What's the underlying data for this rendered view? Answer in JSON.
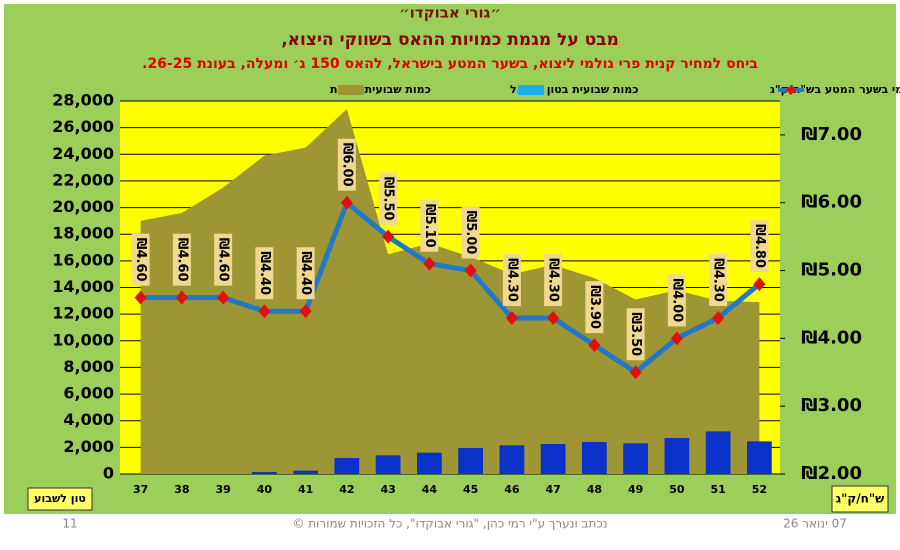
{
  "chart_data": {
    "type": "combo",
    "title": "״גורי אבוקדו״",
    "subtitle": "מבט על מגמת כמויות ההאס בשווקי היצוא,",
    "subtitle2": "ביחס למחיר קנית פרי גולמי ליצוא, בשער המטע בישראל, להאס 150 ג׳ ומעלה, בעונת 26-25.",
    "y_unit_label": "טון לשבוע",
    "y2_unit_label": "ש\"ח/ק\"ג",
    "footer_left": "11",
    "footer_center": "נכתב ונערך ע\"י רמי כהן, \"גורי אבוקדו\", כל הזכויות שמורות ©",
    "footer_right": "07 ינואר 26",
    "categories": [
      "37",
      "38",
      "39",
      "40",
      "41",
      "42",
      "43",
      "44",
      "45",
      "46",
      "47",
      "48",
      "49",
      "50",
      "51",
      "52"
    ],
    "series": [
      {
        "name": "כמות שבועית כוללת",
        "type": "area",
        "color": "#9e9634",
        "values": [
          19000,
          19600,
          21500,
          23900,
          24500,
          27400,
          16500,
          17300,
          16300,
          15000,
          15700,
          14700,
          13100,
          13800,
          13000,
          12900
        ]
      },
      {
        "name": "כמות שבועית בטון ישראל",
        "type": "bar",
        "color": "#0a32c8",
        "values": [
          0,
          0,
          0,
          150,
          250,
          1200,
          1400,
          1600,
          1950,
          2150,
          2250,
          2400,
          2300,
          2700,
          3200,
          2450
        ]
      },
      {
        "name": "האס גולמי בשער המטע בש\"ח/ק\"ג",
        "type": "line",
        "axis": "y2",
        "color": "#1f78c8",
        "marker_color": "#e01010",
        "values": [
          4.6,
          4.6,
          4.6,
          4.4,
          4.4,
          6.0,
          5.5,
          5.1,
          5.0,
          4.3,
          4.3,
          3.9,
          3.5,
          4.0,
          4.3,
          4.8
        ],
        "value_labels": [
          "₪4.60",
          "₪4.60",
          "₪4.60",
          "₪4.40",
          "₪4.40",
          "₪6.00",
          "₪5.50",
          "₪5.10",
          "₪5.00",
          "₪4.30",
          "₪4.30",
          "₪3.90",
          "₪3.50",
          "₪4.00",
          "₪4.30",
          "₪4.80"
        ]
      }
    ],
    "ylim": [
      0,
      28000
    ],
    "yticks": [
      {
        "value": 0,
        "label": "0"
      },
      {
        "value": 2000,
        "label": "2,000"
      },
      {
        "value": 4000,
        "label": "4,000"
      },
      {
        "value": 6000,
        "label": "6,000"
      },
      {
        "value": 8000,
        "label": "8,000"
      },
      {
        "value": 10000,
        "label": "10,000"
      },
      {
        "value": 12000,
        "label": "12,000"
      },
      {
        "value": 14000,
        "label": "14,000"
      },
      {
        "value": 16000,
        "label": "16,000"
      },
      {
        "value": 18000,
        "label": "18,000"
      },
      {
        "value": 20000,
        "label": "20,000"
      },
      {
        "value": 22000,
        "label": "22,000"
      },
      {
        "value": 24000,
        "label": "24,000"
      },
      {
        "value": 26000,
        "label": "26,000"
      },
      {
        "value": 28000,
        "label": "28,000"
      }
    ],
    "y2lim": [
      2,
      7.5
    ],
    "y2ticks": [
      {
        "value": 2,
        "label": "₪2.00"
      },
      {
        "value": 3,
        "label": "₪3.00"
      },
      {
        "value": 4,
        "label": "₪4.00"
      },
      {
        "value": 5,
        "label": "₪5.00"
      },
      {
        "value": 6,
        "label": "₪6.00"
      },
      {
        "value": 7,
        "label": "₪7.00"
      }
    ],
    "grid": true,
    "legend": "top"
  }
}
